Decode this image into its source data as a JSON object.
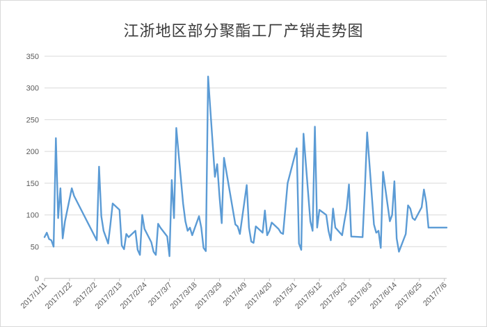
{
  "chart_data": {
    "type": "line",
    "title": "江浙地区部分聚酯工厂产销走势图",
    "xlabel": "",
    "ylabel": "",
    "ylim": [
      0,
      350
    ],
    "yticks": [
      0,
      50,
      100,
      150,
      200,
      250,
      300,
      350
    ],
    "grid": true,
    "legend": "none",
    "colors": {
      "series": "#5b9bd5",
      "grid": "#d9d9d9",
      "text": "#595959"
    },
    "x_tick_labels": [
      "2017/1/11",
      "2017/1/22",
      "2017/2/2",
      "2017/2/13",
      "2017/2/24",
      "2017/3/7",
      "2017/3/18",
      "2017/3/29",
      "2017/4/9",
      "2017/4/20",
      "2017/5/1",
      "2017/5/12",
      "2017/5/23",
      "2017/6/3",
      "2017/6/14",
      "2017/6/25",
      "2017/7/6"
    ],
    "x": [
      "2017/1/11",
      "2017/1/12",
      "2017/1/13",
      "2017/1/14",
      "2017/1/15",
      "2017/1/16",
      "2017/1/17",
      "2017/1/18",
      "2017/1/19",
      "2017/1/20",
      "2017/1/23",
      "2017/1/24",
      "2017/2/3",
      "2017/2/4",
      "2017/2/5",
      "2017/2/6",
      "2017/2/7",
      "2017/2/8",
      "2017/2/9",
      "2017/2/10",
      "2017/2/13",
      "2017/2/14",
      "2017/2/15",
      "2017/2/16",
      "2017/2/17",
      "2017/2/20",
      "2017/2/21",
      "2017/2/22",
      "2017/2/23",
      "2017/2/24",
      "2017/2/27",
      "2017/2/28",
      "2017/3/1",
      "2017/3/2",
      "2017/3/3",
      "2017/3/6",
      "2017/3/7",
      "2017/3/8",
      "2017/3/9",
      "2017/3/10",
      "2017/3/13",
      "2017/3/14",
      "2017/3/15",
      "2017/3/16",
      "2017/3/17",
      "2017/3/20",
      "2017/3/21",
      "2017/3/22",
      "2017/3/23",
      "2017/3/24",
      "2017/3/27",
      "2017/3/28",
      "2017/3/29",
      "2017/3/30",
      "2017/3/31",
      "2017/4/5",
      "2017/4/6",
      "2017/4/7",
      "2017/4/10",
      "2017/4/11",
      "2017/4/12",
      "2017/4/13",
      "2017/4/14",
      "2017/4/17",
      "2017/4/18",
      "2017/4/19",
      "2017/4/20",
      "2017/4/21",
      "2017/4/24",
      "2017/4/25",
      "2017/4/26",
      "2017/4/27",
      "2017/4/28",
      "2017/5/2",
      "2017/5/3",
      "2017/5/4",
      "2017/5/5",
      "2017/5/8",
      "2017/5/9",
      "2017/5/10",
      "2017/5/11",
      "2017/5/12",
      "2017/5/15",
      "2017/5/16",
      "2017/5/17",
      "2017/5/18",
      "2017/5/19",
      "2017/5/22",
      "2017/5/23",
      "2017/5/24",
      "2017/5/25",
      "2017/5/26",
      "2017/5/31",
      "2017/6/1",
      "2017/6/2",
      "2017/6/5",
      "2017/6/6",
      "2017/6/7",
      "2017/6/8",
      "2017/6/9",
      "2017/6/12",
      "2017/6/13",
      "2017/6/14",
      "2017/6/15",
      "2017/6/16",
      "2017/6/19",
      "2017/6/20",
      "2017/6/21",
      "2017/6/22",
      "2017/6/23",
      "2017/6/26",
      "2017/6/27",
      "2017/6/28",
      "2017/6/29",
      "2017/6/30",
      "2017/7/3",
      "2017/7/4",
      "2017/7/5",
      "2017/7/6",
      "2017/7/7"
    ],
    "series": [
      {
        "values": [
          65,
          72,
          62,
          60,
          50,
          221,
          95,
          142,
          63,
          90,
          142,
          130,
          60,
          176,
          98,
          75,
          65,
          55,
          85,
          118,
          108,
          52,
          46,
          70,
          65,
          75,
          45,
          37,
          100,
          78,
          57,
          42,
          37,
          86,
          80,
          66,
          35,
          155,
          95,
          237,
          118,
          90,
          75,
          80,
          68,
          98,
          80,
          48,
          43,
          318,
          160,
          180,
          130,
          87,
          190,
          85,
          82,
          70,
          147,
          80,
          58,
          56,
          82,
          72,
          107,
          68,
          75,
          88,
          78,
          72,
          70,
          110,
          150,
          205,
          55,
          45,
          228,
          90,
          75,
          239,
          80,
          108,
          100,
          75,
          60,
          110,
          80,
          68,
          90,
          110,
          148,
          66,
          65,
          140,
          230,
          85,
          72,
          75,
          48,
          168,
          90,
          100,
          153,
          63,
          42,
          70,
          115,
          110,
          95,
          92,
          112,
          140,
          120,
          80,
          80,
          80,
          80,
          80,
          80,
          80
        ]
      }
    ]
  }
}
